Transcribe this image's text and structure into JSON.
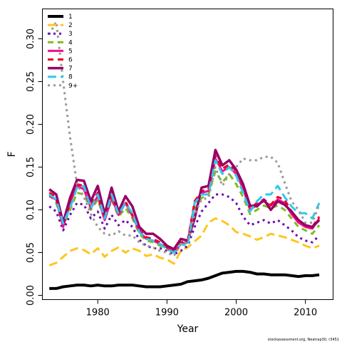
{
  "chart_data": {
    "type": "line",
    "title": "",
    "xlabel": "Year",
    "ylabel": "F",
    "xlim": [
      1972,
      2014
    ],
    "ylim": [
      -0.005,
      0.335
    ],
    "x_ticks": [
      1980,
      1990,
      2000,
      2010
    ],
    "x_tick_labels": [
      "1980",
      "1990",
      "2000",
      "2010"
    ],
    "y_ticks": [
      0.0,
      0.05,
      0.1,
      0.15,
      0.2,
      0.25,
      0.3
    ],
    "y_tick_labels": [
      "0.00",
      "0.05",
      "0.10",
      "0.15",
      "0.20",
      "0.25",
      "0.30"
    ],
    "grid": false,
    "legend_position": "top-left",
    "footer": "stockassessment.org, Neatrap30, r3451",
    "x": [
      1973,
      1974,
      1975,
      1976,
      1977,
      1978,
      1979,
      1980,
      1981,
      1982,
      1983,
      1984,
      1985,
      1986,
      1987,
      1988,
      1989,
      1990,
      1991,
      1992,
      1993,
      1994,
      1995,
      1996,
      1997,
      1998,
      1999,
      2000,
      2001,
      2002,
      2003,
      2004,
      2005,
      2006,
      2007,
      2008,
      2009,
      2010,
      2011,
      2012
    ],
    "series": [
      {
        "name": "1",
        "color": "#000000",
        "dash": "solid",
        "width": 4,
        "values": [
          0.008,
          0.008,
          0.01,
          0.011,
          0.012,
          0.012,
          0.011,
          0.012,
          0.011,
          0.011,
          0.012,
          0.012,
          0.012,
          0.011,
          0.01,
          0.01,
          0.01,
          0.011,
          0.012,
          0.013,
          0.016,
          0.017,
          0.018,
          0.02,
          0.023,
          0.026,
          0.027,
          0.028,
          0.028,
          0.027,
          0.025,
          0.025,
          0.024,
          0.024,
          0.024,
          0.023,
          0.022,
          0.023,
          0.023,
          0.024
        ]
      },
      {
        "name": "2",
        "color": "#FFC61E",
        "dash": "longdash",
        "width": 3,
        "values": [
          0.035,
          0.038,
          0.045,
          0.052,
          0.055,
          0.053,
          0.048,
          0.055,
          0.045,
          0.052,
          0.056,
          0.05,
          0.055,
          0.052,
          0.046,
          0.048,
          0.044,
          0.042,
          0.037,
          0.052,
          0.056,
          0.063,
          0.07,
          0.085,
          0.09,
          0.087,
          0.082,
          0.074,
          0.072,
          0.069,
          0.065,
          0.068,
          0.072,
          0.07,
          0.068,
          0.065,
          0.062,
          0.058,
          0.055,
          0.058
        ]
      },
      {
        "name": "3",
        "color": "#6A0DAD",
        "dash": "dotted",
        "width": 3,
        "values": [
          0.104,
          0.098,
          0.076,
          0.094,
          0.108,
          0.106,
          0.09,
          0.098,
          0.078,
          0.094,
          0.082,
          0.088,
          0.08,
          0.065,
          0.058,
          0.055,
          0.055,
          0.052,
          0.048,
          0.052,
          0.058,
          0.08,
          0.098,
          0.108,
          0.118,
          0.118,
          0.115,
          0.108,
          0.092,
          0.082,
          0.085,
          0.088,
          0.084,
          0.088,
          0.082,
          0.076,
          0.068,
          0.064,
          0.062,
          0.07
        ]
      },
      {
        "name": "4",
        "color": "#7CBE20",
        "dash": "dashed",
        "width": 3,
        "values": [
          0.118,
          0.108,
          0.082,
          0.1,
          0.12,
          0.118,
          0.1,
          0.112,
          0.088,
          0.112,
          0.092,
          0.102,
          0.09,
          0.072,
          0.064,
          0.062,
          0.058,
          0.054,
          0.05,
          0.058,
          0.062,
          0.1,
          0.114,
          0.118,
          0.145,
          0.132,
          0.142,
          0.13,
          0.115,
          0.095,
          0.1,
          0.105,
          0.102,
          0.105,
          0.1,
          0.09,
          0.08,
          0.076,
          0.072,
          0.082
        ]
      },
      {
        "name": "5",
        "color": "#F50C8C",
        "dash": "solid",
        "width": 3,
        "values": [
          0.116,
          0.112,
          0.08,
          0.108,
          0.128,
          0.124,
          0.102,
          0.116,
          0.088,
          0.114,
          0.094,
          0.108,
          0.093,
          0.075,
          0.066,
          0.064,
          0.06,
          0.056,
          0.05,
          0.06,
          0.063,
          0.108,
          0.12,
          0.122,
          0.16,
          0.145,
          0.15,
          0.142,
          0.125,
          0.1,
          0.106,
          0.11,
          0.105,
          0.112,
          0.108,
          0.095,
          0.085,
          0.08,
          0.078,
          0.09
        ]
      },
      {
        "name": "6",
        "color": "#E8001E",
        "dash": "dashed",
        "width": 3,
        "values": [
          0.12,
          0.115,
          0.082,
          0.11,
          0.13,
          0.128,
          0.105,
          0.12,
          0.09,
          0.118,
          0.096,
          0.11,
          0.094,
          0.076,
          0.068,
          0.066,
          0.062,
          0.056,
          0.052,
          0.062,
          0.064,
          0.11,
          0.122,
          0.124,
          0.163,
          0.148,
          0.153,
          0.145,
          0.128,
          0.102,
          0.108,
          0.112,
          0.106,
          0.115,
          0.112,
          0.098,
          0.088,
          0.082,
          0.08,
          0.092
        ]
      },
      {
        "name": "7",
        "color": "#990066",
        "dash": "solid",
        "width": 3.5,
        "values": [
          0.124,
          0.118,
          0.085,
          0.114,
          0.135,
          0.134,
          0.11,
          0.128,
          0.095,
          0.126,
          0.098,
          0.116,
          0.104,
          0.08,
          0.072,
          0.072,
          0.066,
          0.058,
          0.054,
          0.066,
          0.064,
          0.09,
          0.126,
          0.128,
          0.17,
          0.152,
          0.158,
          0.147,
          0.13,
          0.105,
          0.104,
          0.112,
          0.1,
          0.11,
          0.106,
          0.098,
          0.088,
          0.082,
          0.08,
          0.088
        ]
      },
      {
        "name": "8",
        "color": "#2EC8F0",
        "dash": "longdash",
        "width": 3,
        "values": [
          0.118,
          0.112,
          0.084,
          0.102,
          0.126,
          0.128,
          0.102,
          0.118,
          0.09,
          0.118,
          0.095,
          0.108,
          0.096,
          0.074,
          0.066,
          0.064,
          0.06,
          0.054,
          0.05,
          0.06,
          0.058,
          0.108,
          0.118,
          0.118,
          0.158,
          0.142,
          0.15,
          0.14,
          0.12,
          0.098,
          0.11,
          0.118,
          0.118,
          0.128,
          0.115,
          0.104,
          0.096,
          0.096,
          0.09,
          0.108
        ]
      },
      {
        "name": "9+",
        "color": "#999999",
        "dash": "dotted",
        "width": 3,
        "values": [
          0.305,
          0.32,
          0.25,
          0.185,
          0.13,
          0.115,
          0.095,
          0.08,
          0.072,
          0.07,
          0.075,
          0.07,
          0.07,
          0.062,
          0.058,
          0.056,
          0.052,
          0.05,
          0.046,
          0.06,
          0.062,
          0.095,
          0.112,
          0.114,
          0.15,
          0.128,
          0.142,
          0.15,
          0.16,
          0.158,
          0.158,
          0.162,
          0.162,
          0.155,
          0.132,
          0.11,
          0.1,
          0.085,
          0.085,
          0.106
        ]
      }
    ]
  }
}
